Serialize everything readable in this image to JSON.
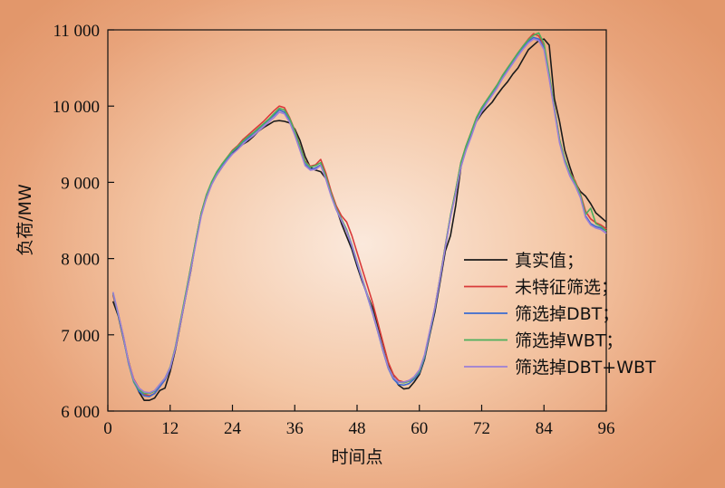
{
  "chart_data": {
    "type": "line",
    "xlabel": "时间点",
    "ylabel": "负荷/MW",
    "xlim": [
      0,
      96
    ],
    "ylim": [
      6000,
      11000
    ],
    "x_ticks": [
      0,
      12,
      24,
      36,
      48,
      60,
      72,
      84,
      96
    ],
    "y_ticks": [
      6000,
      7000,
      8000,
      9000,
      10000,
      11000
    ],
    "x_tick_labels": [
      "0",
      "12",
      "24",
      "36",
      "48",
      "60",
      "72",
      "84",
      "96"
    ],
    "y_tick_labels": [
      "6 000",
      "7 000",
      "8 000",
      "9 000",
      "10 000",
      "11 000"
    ],
    "legend_position": "right",
    "x": [
      1,
      2,
      3,
      4,
      5,
      6,
      7,
      8,
      9,
      10,
      11,
      12,
      13,
      14,
      15,
      16,
      17,
      18,
      19,
      20,
      21,
      22,
      23,
      24,
      25,
      26,
      27,
      28,
      29,
      30,
      31,
      32,
      33,
      34,
      35,
      36,
      37,
      38,
      39,
      40,
      41,
      42,
      43,
      44,
      45,
      46,
      47,
      48,
      49,
      50,
      51,
      52,
      53,
      54,
      55,
      56,
      57,
      58,
      59,
      60,
      61,
      62,
      63,
      64,
      65,
      66,
      67,
      68,
      69,
      70,
      71,
      72,
      73,
      74,
      75,
      76,
      77,
      78,
      79,
      80,
      81,
      82,
      83,
      84,
      85,
      86,
      87,
      88,
      89,
      90,
      91,
      92,
      93,
      94,
      95,
      96
    ],
    "series": [
      {
        "name": "真实值；",
        "color": "#1a1a1a",
        "values": [
          7440,
          7250,
          6950,
          6650,
          6400,
          6250,
          6140,
          6140,
          6170,
          6270,
          6300,
          6520,
          6800,
          7150,
          7500,
          7850,
          8250,
          8600,
          8800,
          8980,
          9100,
          9200,
          9300,
          9380,
          9440,
          9500,
          9540,
          9600,
          9670,
          9720,
          9760,
          9800,
          9810,
          9800,
          9780,
          9700,
          9550,
          9340,
          9200,
          9160,
          9140,
          9050,
          8860,
          8660,
          8460,
          8290,
          8120,
          7900,
          7700,
          7520,
          7350,
          7120,
          6880,
          6630,
          6450,
          6340,
          6290,
          6300,
          6380,
          6480,
          6680,
          7000,
          7300,
          7700,
          8100,
          8300,
          8700,
          9200,
          9450,
          9650,
          9800,
          9900,
          9980,
          10050,
          10150,
          10240,
          10320,
          10420,
          10500,
          10620,
          10740,
          10800,
          10860,
          10880,
          10800,
          10100,
          9800,
          9420,
          9200,
          9000,
          8880,
          8820,
          8720,
          8600,
          8540,
          8480
        ]
      },
      {
        "name": "未特征筛选；",
        "color": "#d93a3a",
        "values": [
          7520,
          7270,
          6980,
          6640,
          6420,
          6300,
          6220,
          6200,
          6230,
          6320,
          6410,
          6560,
          6830,
          7180,
          7530,
          7900,
          8250,
          8600,
          8840,
          9000,
          9130,
          9240,
          9330,
          9420,
          9480,
          9560,
          9620,
          9680,
          9740,
          9800,
          9870,
          9940,
          10000,
          9980,
          9850,
          9680,
          9480,
          9280,
          9210,
          9230,
          9300,
          9120,
          8880,
          8690,
          8560,
          8480,
          8300,
          8080,
          7860,
          7640,
          7420,
          7160,
          6900,
          6640,
          6480,
          6400,
          6380,
          6400,
          6440,
          6530,
          6720,
          7040,
          7360,
          7760,
          8170,
          8560,
          8900,
          9260,
          9480,
          9660,
          9850,
          9980,
          10080,
          10180,
          10280,
          10400,
          10500,
          10600,
          10700,
          10790,
          10880,
          10950,
          10920,
          10800,
          10400,
          9980,
          9560,
          9300,
          9130,
          9020,
          8850,
          8620,
          8520,
          8470,
          8440,
          8390
        ]
      },
      {
        "name": "筛选掉DBT；",
        "color": "#3a6bd0",
        "values": [
          7540,
          7260,
          6960,
          6620,
          6380,
          6260,
          6200,
          6190,
          6230,
          6320,
          6410,
          6560,
          6820,
          7170,
          7520,
          7880,
          8240,
          8580,
          8820,
          8990,
          9120,
          9220,
          9310,
          9400,
          9460,
          9530,
          9580,
          9640,
          9700,
          9760,
          9820,
          9880,
          9950,
          9920,
          9810,
          9640,
          9440,
          9240,
          9170,
          9190,
          9230,
          9060,
          8830,
          8640,
          8500,
          8360,
          8160,
          7940,
          7720,
          7500,
          7280,
          7040,
          6790,
          6560,
          6420,
          6350,
          6340,
          6360,
          6420,
          6500,
          6700,
          7020,
          7340,
          7740,
          8150,
          8550,
          8880,
          9240,
          9460,
          9640,
          9830,
          9960,
          10060,
          10160,
          10260,
          10380,
          10480,
          10580,
          10680,
          10770,
          10850,
          10900,
          10880,
          10760,
          10380,
          9960,
          9540,
          9280,
          9100,
          8980,
          8820,
          8560,
          8460,
          8420,
          8400,
          8360
        ]
      },
      {
        "name": "筛选掉WBT；",
        "color": "#4caf5c",
        "values": [
          7550,
          7270,
          6970,
          6630,
          6390,
          6280,
          6230,
          6230,
          6260,
          6350,
          6430,
          6580,
          6840,
          7190,
          7540,
          7900,
          8260,
          8600,
          8840,
          9010,
          9140,
          9240,
          9330,
          9410,
          9470,
          9540,
          9600,
          9650,
          9710,
          9770,
          9830,
          9900,
          9970,
          9950,
          9840,
          9670,
          9470,
          9270,
          9200,
          9220,
          9260,
          9080,
          8850,
          8660,
          8520,
          8380,
          8180,
          7960,
          7740,
          7520,
          7300,
          7060,
          6810,
          6580,
          6440,
          6380,
          6370,
          6390,
          6440,
          6520,
          6720,
          7040,
          7360,
          7760,
          8170,
          8570,
          8900,
          9260,
          9480,
          9660,
          9850,
          9980,
          10080,
          10180,
          10280,
          10400,
          10500,
          10600,
          10700,
          10790,
          10870,
          10930,
          10960,
          10820,
          10420,
          9980,
          9560,
          9300,
          9120,
          9000,
          8840,
          8580,
          8660,
          8460,
          8420,
          8360
        ]
      },
      {
        "name": "筛选掉DBT+WBT",
        "color": "#9b7fd6",
        "values": [
          7560,
          7280,
          6980,
          6640,
          6410,
          6300,
          6250,
          6240,
          6270,
          6350,
          6430,
          6570,
          6820,
          7160,
          7500,
          7860,
          8220,
          8560,
          8800,
          8970,
          9100,
          9200,
          9290,
          9370,
          9430,
          9500,
          9560,
          9610,
          9670,
          9730,
          9790,
          9850,
          9920,
          9900,
          9790,
          9620,
          9420,
          9220,
          9160,
          9170,
          9220,
          9040,
          8820,
          8640,
          8500,
          8360,
          8170,
          7950,
          7730,
          7510,
          7290,
          7050,
          6800,
          6570,
          6440,
          6380,
          6380,
          6400,
          6450,
          6540,
          6740,
          7050,
          7360,
          7750,
          8150,
          8540,
          8860,
          9200,
          9420,
          9600,
          9800,
          9930,
          10040,
          10140,
          10240,
          10360,
          10460,
          10560,
          10660,
          10750,
          10830,
          10880,
          10860,
          10740,
          10360,
          9940,
          9520,
          9260,
          9080,
          8960,
          8800,
          8540,
          8440,
          8400,
          8380,
          8330
        ]
      }
    ]
  }
}
